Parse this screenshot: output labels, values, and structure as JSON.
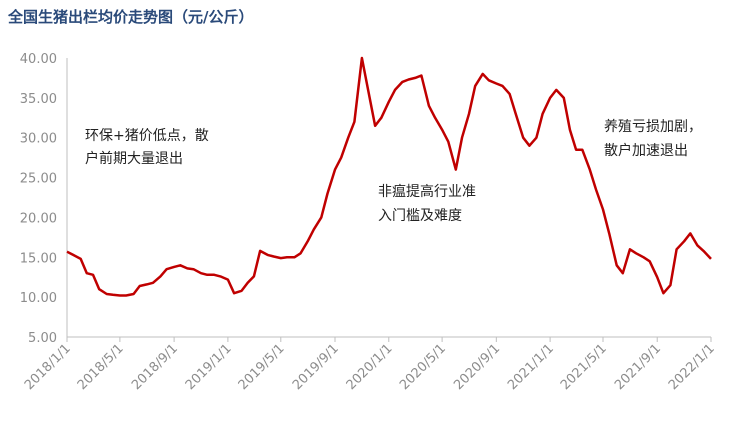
{
  "chart_data": {
    "type": "line",
    "title": "全国生猪出栏均价走势图（元/公斤）",
    "x": [
      "2018/1/1",
      "2018/1/15",
      "2018/2/1",
      "2018/2/15",
      "2018/3/1",
      "2018/3/15",
      "2018/4/1",
      "2018/4/15",
      "2018/5/1",
      "2018/5/15",
      "2018/6/1",
      "2018/6/15",
      "2018/7/1",
      "2018/7/15",
      "2018/8/1",
      "2018/8/15",
      "2018/9/1",
      "2018/9/15",
      "2018/10/1",
      "2018/10/15",
      "2018/11/1",
      "2018/11/15",
      "2018/12/1",
      "2018/12/15",
      "2019/1/1",
      "2019/1/15",
      "2019/2/1",
      "2019/2/15",
      "2019/3/1",
      "2019/3/15",
      "2019/4/1",
      "2019/4/15",
      "2019/5/1",
      "2019/5/15",
      "2019/6/1",
      "2019/6/15",
      "2019/7/1",
      "2019/7/15",
      "2019/8/1",
      "2019/8/15",
      "2019/9/1",
      "2019/9/15",
      "2019/10/1",
      "2019/10/15",
      "2019/11/1",
      "2019/11/15",
      "2019/12/1",
      "2019/12/15",
      "2020/1/1",
      "2020/1/15",
      "2020/2/1",
      "2020/2/15",
      "2020/3/1",
      "2020/3/15",
      "2020/4/1",
      "2020/4/15",
      "2020/5/1",
      "2020/5/15",
      "2020/6/1",
      "2020/6/15",
      "2020/7/1",
      "2020/7/15",
      "2020/8/1",
      "2020/8/15",
      "2020/9/1",
      "2020/9/15",
      "2020/10/1",
      "2020/10/15",
      "2020/11/1",
      "2020/11/15",
      "2020/12/1",
      "2020/12/15",
      "2021/1/1",
      "2021/1/15",
      "2021/2/1",
      "2021/2/15",
      "2021/3/1",
      "2021/3/15",
      "2021/4/1",
      "2021/4/15",
      "2021/5/1",
      "2021/5/15",
      "2021/6/1",
      "2021/6/15",
      "2021/7/1",
      "2021/7/15",
      "2021/8/1",
      "2021/8/15",
      "2021/9/1",
      "2021/9/15",
      "2021/10/1",
      "2021/10/15",
      "2021/11/1",
      "2021/11/15",
      "2021/12/1",
      "2021/12/15",
      "2022/1/1"
    ],
    "series": [
      {
        "color": "#c00000",
        "values": [
          15.7,
          15.3,
          14.8,
          13.0,
          12.8,
          11.0,
          10.4,
          10.3,
          10.2,
          10.2,
          10.4,
          11.4,
          11.6,
          11.8,
          12.6,
          13.5,
          13.8,
          14.0,
          13.6,
          13.5,
          13.0,
          12.8,
          12.8,
          12.6,
          12.2,
          10.5,
          10.8,
          11.8,
          12.6,
          15.8,
          15.3,
          15.1,
          14.9,
          15.0,
          15.0,
          15.5,
          17.0,
          18.5,
          20.0,
          23.0,
          26.0,
          27.5,
          30.0,
          32.0,
          40.0,
          36.0,
          31.5,
          32.5,
          34.5,
          36.0,
          37.0,
          37.3,
          37.5,
          37.8,
          34.0,
          32.5,
          31.0,
          29.5,
          26.0,
          30.0,
          33.0,
          36.5,
          38.0,
          37.2,
          36.8,
          36.5,
          35.5,
          33.0,
          30.0,
          29.0,
          30.0,
          33.0,
          35.0,
          36.0,
          35.0,
          31.0,
          28.5,
          28.5,
          26.0,
          23.5,
          21.0,
          18.0,
          14.0,
          13.0,
          16.0,
          15.5,
          15.0,
          14.5,
          12.5,
          10.5,
          11.5,
          16.0,
          17.0,
          18.0,
          16.5,
          15.8,
          14.8
        ]
      }
    ],
    "xlim": [
      "2018/1/1",
      "2022/1/1"
    ],
    "xticks": [
      "2018/1/1",
      "2018/5/1",
      "2018/9/1",
      "2019/1/1",
      "2019/5/1",
      "2019/9/1",
      "2020/1/1",
      "2020/5/1",
      "2020/9/1",
      "2021/1/1",
      "2021/5/1",
      "2021/9/1",
      "2022/1/1"
    ],
    "ylim": [
      5,
      40
    ],
    "yticks": [
      {
        "value": 5,
        "label": "5.00"
      },
      {
        "value": 10,
        "label": "10.00"
      },
      {
        "value": 15,
        "label": "15.00"
      },
      {
        "value": 20,
        "label": "20.00"
      },
      {
        "value": 25,
        "label": "25.00"
      },
      {
        "value": 30,
        "label": "30.00"
      },
      {
        "value": 35,
        "label": "35.00"
      },
      {
        "value": 40,
        "label": "40.00"
      }
    ],
    "grid": false,
    "annotations": [
      [
        "环保+猪价低点，散",
        "户前期大量退出"
      ],
      [
        "非瘟提高行业准",
        "入门槛及难度"
      ],
      [
        "养殖亏损加剧，",
        "散户加速退出"
      ]
    ]
  }
}
